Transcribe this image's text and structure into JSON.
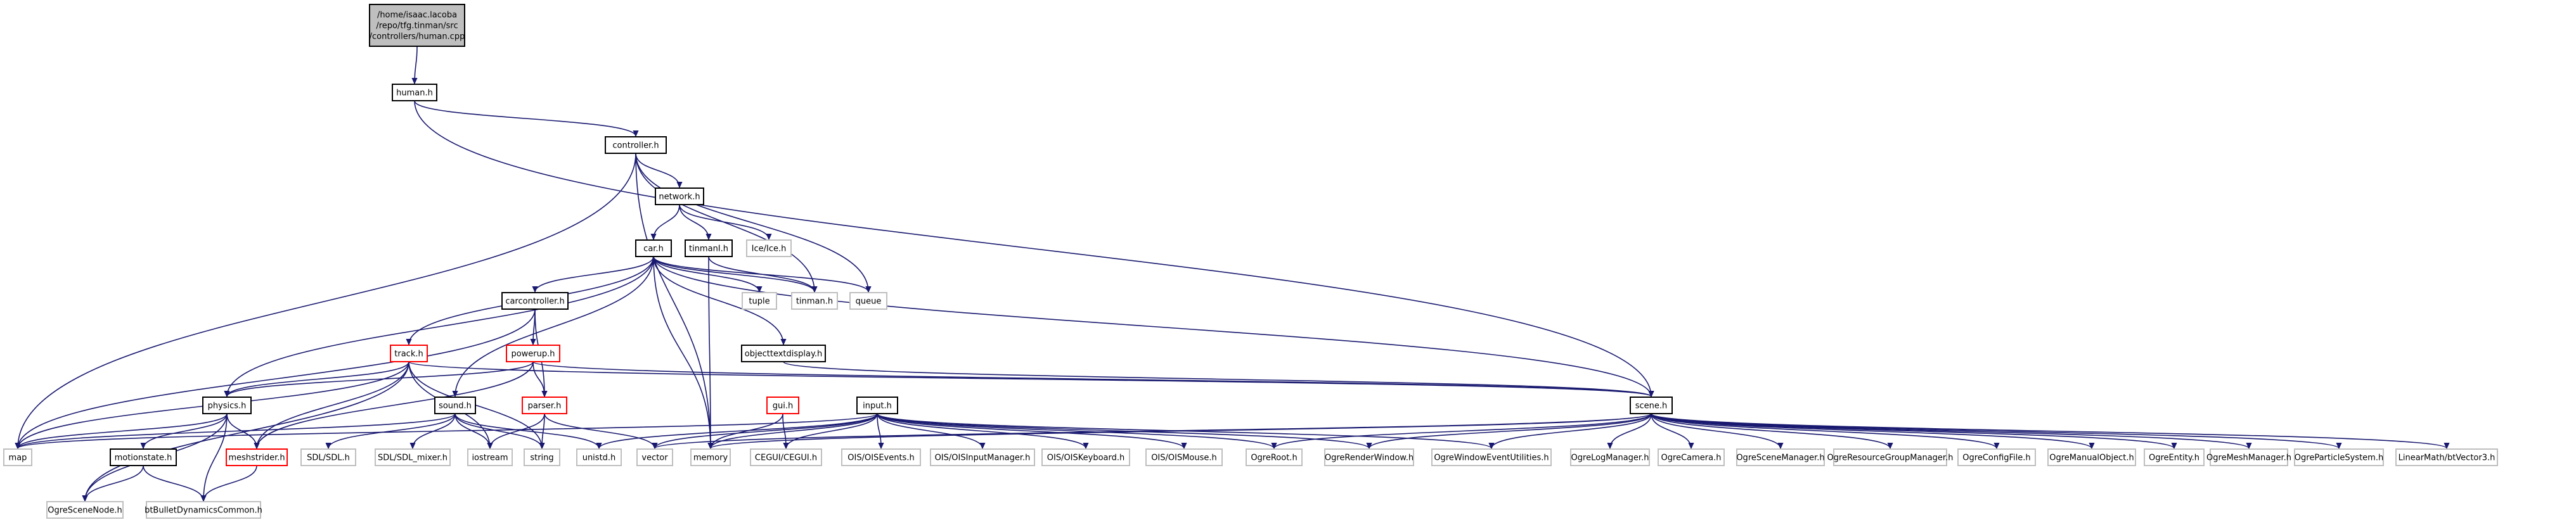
{
  "diagram": {
    "type": "include-dependency-graph",
    "colors": {
      "edge": "#191970",
      "root_fill": "#bfbfbf",
      "red_border": "#ff0000",
      "gray_border": "#bfbfbf"
    },
    "root": {
      "id": "root",
      "lines": [
        "/home/isaac.lacoba",
        "/repo/tfg.tinman/src",
        "/controllers/human.cpp"
      ]
    },
    "nodes": [
      {
        "id": "human",
        "label": "human.h",
        "style": "normal"
      },
      {
        "id": "controller",
        "label": "controller.h",
        "style": "normal"
      },
      {
        "id": "network",
        "label": "network.h",
        "style": "normal"
      },
      {
        "id": "car",
        "label": "car.h",
        "style": "normal"
      },
      {
        "id": "tinmanih",
        "label": "tinmanI.h",
        "style": "normal"
      },
      {
        "id": "iceice",
        "label": "Ice/Ice.h",
        "style": "gray"
      },
      {
        "id": "tuple",
        "label": "tuple",
        "style": "gray"
      },
      {
        "id": "tinmanh",
        "label": "tinman.h",
        "style": "gray"
      },
      {
        "id": "queue",
        "label": "queue",
        "style": "gray"
      },
      {
        "id": "carcontroller",
        "label": "carcontroller.h",
        "style": "normal"
      },
      {
        "id": "objecttextdisplay",
        "label": "objecttextdisplay.h",
        "style": "normal"
      },
      {
        "id": "track",
        "label": "track.h",
        "style": "red"
      },
      {
        "id": "powerup",
        "label": "powerup.h",
        "style": "red"
      },
      {
        "id": "gui",
        "label": "gui.h",
        "style": "red"
      },
      {
        "id": "input",
        "label": "input.h",
        "style": "normal"
      },
      {
        "id": "scene",
        "label": "scene.h",
        "style": "normal"
      },
      {
        "id": "physics",
        "label": "physics.h",
        "style": "normal"
      },
      {
        "id": "sound",
        "label": "sound.h",
        "style": "normal"
      },
      {
        "id": "parser",
        "label": "parser.h",
        "style": "red"
      },
      {
        "id": "map",
        "label": "map",
        "style": "gray"
      },
      {
        "id": "motionstate",
        "label": "motionstate.h",
        "style": "normal"
      },
      {
        "id": "meshstrider",
        "label": "meshstrider.h",
        "style": "red"
      },
      {
        "id": "sdl",
        "label": "SDL/SDL.h",
        "style": "gray"
      },
      {
        "id": "sdlmixer",
        "label": "SDL/SDL_mixer.h",
        "style": "gray"
      },
      {
        "id": "iostream",
        "label": "iostream",
        "style": "gray"
      },
      {
        "id": "string",
        "label": "string",
        "style": "gray"
      },
      {
        "id": "unistd",
        "label": "unistd.h",
        "style": "gray"
      },
      {
        "id": "vector",
        "label": "vector",
        "style": "gray"
      },
      {
        "id": "memory",
        "label": "memory",
        "style": "gray"
      },
      {
        "id": "cegui",
        "label": "CEGUI/CEGUI.h",
        "style": "gray"
      },
      {
        "id": "oisevents",
        "label": "OIS/OISEvents.h",
        "style": "gray"
      },
      {
        "id": "oisinput",
        "label": "OIS/OISInputManager.h",
        "style": "gray"
      },
      {
        "id": "oiskeyboard",
        "label": "OIS/OISKeyboard.h",
        "style": "gray"
      },
      {
        "id": "oismouse",
        "label": "OIS/OISMouse.h",
        "style": "gray"
      },
      {
        "id": "ogreroot",
        "label": "OgreRoot.h",
        "style": "gray"
      },
      {
        "id": "ogrerenderwindow",
        "label": "OgreRenderWindow.h",
        "style": "gray"
      },
      {
        "id": "ogrewindowevent",
        "label": "OgreWindowEventUtilities.h",
        "style": "gray"
      },
      {
        "id": "ogrelog",
        "label": "OgreLogManager.h",
        "style": "gray"
      },
      {
        "id": "ogrecamera",
        "label": "OgreCamera.h",
        "style": "gray"
      },
      {
        "id": "ogrescenemanager",
        "label": "OgreSceneManager.h",
        "style": "gray"
      },
      {
        "id": "ogreresource",
        "label": "OgreResourceGroupManager.h",
        "style": "gray"
      },
      {
        "id": "ogreconfig",
        "label": "OgreConfigFile.h",
        "style": "gray"
      },
      {
        "id": "ogremanual",
        "label": "OgreManualObject.h",
        "style": "gray"
      },
      {
        "id": "ogreentity",
        "label": "OgreEntity.h",
        "style": "gray"
      },
      {
        "id": "ogremesh",
        "label": "OgreMeshManager.h",
        "style": "gray"
      },
      {
        "id": "ogreparticle",
        "label": "OgreParticleSystem.h",
        "style": "gray"
      },
      {
        "id": "linearmath",
        "label": "LinearMath/btVector3.h",
        "style": "gray"
      },
      {
        "id": "ogrescenenode",
        "label": "OgreSceneNode.h",
        "style": "gray"
      },
      {
        "id": "btbullet",
        "label": "btBulletDynamicsCommon.h",
        "style": "gray"
      }
    ],
    "edges": [
      [
        "root",
        "human"
      ],
      [
        "human",
        "controller"
      ],
      [
        "human",
        "scene"
      ],
      [
        "controller",
        "network"
      ],
      [
        "controller",
        "map"
      ],
      [
        "controller",
        "memory"
      ],
      [
        "controller",
        "tinmanh"
      ],
      [
        "controller",
        "queue"
      ],
      [
        "network",
        "car"
      ],
      [
        "network",
        "tinmanih"
      ],
      [
        "network",
        "iceice"
      ],
      [
        "tinmanih",
        "tinmanh"
      ],
      [
        "tinmanih",
        "memory"
      ],
      [
        "car",
        "carcontroller"
      ],
      [
        "car",
        "track"
      ],
      [
        "car",
        "physics"
      ],
      [
        "car",
        "sound"
      ],
      [
        "car",
        "tuple"
      ],
      [
        "car",
        "tinmanh"
      ],
      [
        "car",
        "queue"
      ],
      [
        "car",
        "objecttextdisplay"
      ],
      [
        "car",
        "scene"
      ],
      [
        "car",
        "memory"
      ],
      [
        "carcontroller",
        "powerup"
      ],
      [
        "carcontroller",
        "parser"
      ],
      [
        "carcontroller",
        "map"
      ],
      [
        "objecttextdisplay",
        "scene"
      ],
      [
        "track",
        "physics"
      ],
      [
        "track",
        "meshstrider"
      ],
      [
        "track",
        "scene"
      ],
      [
        "track",
        "map"
      ],
      [
        "track",
        "ogrescenenode"
      ],
      [
        "track",
        "iostream"
      ],
      [
        "track",
        "string"
      ],
      [
        "powerup",
        "physics"
      ],
      [
        "powerup",
        "parser"
      ],
      [
        "powerup",
        "scene"
      ],
      [
        "powerup",
        "meshstrider"
      ],
      [
        "gui",
        "cegui"
      ],
      [
        "gui",
        "memory"
      ],
      [
        "input",
        "map"
      ],
      [
        "input",
        "memory"
      ],
      [
        "input",
        "cegui"
      ],
      [
        "input",
        "oisevents"
      ],
      [
        "input",
        "oisinput"
      ],
      [
        "input",
        "oiskeyboard"
      ],
      [
        "input",
        "oismouse"
      ],
      [
        "input",
        "ogreroot"
      ],
      [
        "input",
        "ogrerenderwindow"
      ],
      [
        "input",
        "ogrewindowevent"
      ],
      [
        "input",
        "unistd"
      ],
      [
        "input",
        "vector"
      ],
      [
        "scene",
        "ogreroot"
      ],
      [
        "scene",
        "ogrerenderwindow"
      ],
      [
        "scene",
        "ogrewindowevent"
      ],
      [
        "scene",
        "ogrelog"
      ],
      [
        "scene",
        "ogrecamera"
      ],
      [
        "scene",
        "ogrescenemanager"
      ],
      [
        "scene",
        "ogreresource"
      ],
      [
        "scene",
        "ogreconfig"
      ],
      [
        "scene",
        "ogremanual"
      ],
      [
        "scene",
        "ogreentity"
      ],
      [
        "scene",
        "ogremesh"
      ],
      [
        "scene",
        "ogreparticle"
      ],
      [
        "scene",
        "linearmath"
      ],
      [
        "scene",
        "memory"
      ],
      [
        "scene",
        "vector"
      ],
      [
        "physics",
        "motionstate"
      ],
      [
        "physics",
        "meshstrider"
      ],
      [
        "physics",
        "btbullet"
      ],
      [
        "physics",
        "ogrescenenode"
      ],
      [
        "physics",
        "map"
      ],
      [
        "motionstate",
        "ogrescenenode"
      ],
      [
        "motionstate",
        "btbullet"
      ],
      [
        "meshstrider",
        "btbullet"
      ],
      [
        "sound",
        "sdl"
      ],
      [
        "sound",
        "sdlmixer"
      ],
      [
        "sound",
        "iostream"
      ],
      [
        "sound",
        "string"
      ],
      [
        "sound",
        "map"
      ],
      [
        "sound",
        "unistd"
      ],
      [
        "parser",
        "iostream"
      ],
      [
        "parser",
        "string"
      ],
      [
        "parser",
        "vector"
      ]
    ]
  }
}
